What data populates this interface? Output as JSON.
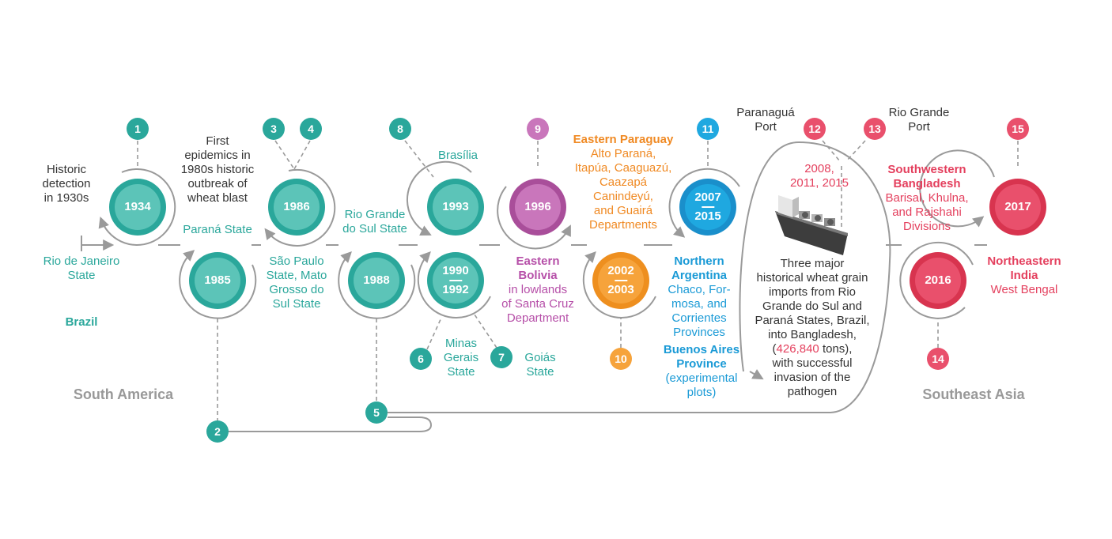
{
  "colors": {
    "teal": "#2aa79b",
    "teal_light": "#5cc4b8",
    "purple": "#c976bb",
    "orange": "#f6a33b",
    "blue": "#1fa8e0",
    "red": "#e9506c",
    "path": "#9a9a9a"
  },
  "regions": {
    "south_america": "South America",
    "southeast_asia": "Southeast Asia"
  },
  "years": {
    "y1934": "1934",
    "y1985": "1985",
    "y1986": "1986",
    "y1988": "1988",
    "y1993": "1993",
    "y1990_a": "1990",
    "y1990_b": "1992",
    "y1996": "1996",
    "y2002_a": "2002",
    "y2002_b": "2003",
    "y2007_a": "2007",
    "y2007_b": "2015",
    "y2016": "2016",
    "y2017": "2017"
  },
  "markers": [
    "1",
    "2",
    "3",
    "4",
    "5",
    "6",
    "7",
    "8",
    "9",
    "10",
    "11",
    "12",
    "13",
    "14",
    "15"
  ],
  "labels": {
    "historic": [
      "Historic",
      "detection",
      "in 1930s"
    ],
    "rio_janeiro": [
      "Rio de Janeiro",
      "State"
    ],
    "brazil": "Brazil",
    "first_epidemics": [
      "First",
      "epidemics in",
      "1980s historic",
      "outbreak of",
      "wheat blast"
    ],
    "parana": "Paraná State",
    "sao_paulo": [
      "São Paulo",
      "State, Mato",
      "Grosso do",
      "Sul State"
    ],
    "rio_grande_sul": [
      "Rio Grande",
      "do Sul State"
    ],
    "brasilia": "Brasília",
    "minas": [
      "Minas",
      "Gerais",
      "State"
    ],
    "goias": [
      "Goiás",
      "State"
    ],
    "eastern_bolivia_title": [
      "Eastern",
      "Bolivia"
    ],
    "eastern_bolivia_body": [
      "in lowlands",
      "of Santa Cruz",
      "Department"
    ],
    "eastern_paraguay_title": "Eastern Paraguay",
    "eastern_paraguay_body": [
      "Alto Paraná,",
      "Itapúa, Caaguazú,",
      "Caazapá",
      "Canindeyú,",
      "and Guairá",
      "Departments"
    ],
    "northern_argentina_title": [
      "Northern",
      "Argentina"
    ],
    "northern_argentina_body": [
      "Chaco, For-",
      "mosa, and",
      "Corrientes",
      "Provinces"
    ],
    "buenos_aires_title": [
      "Buenos Aires",
      "Province"
    ],
    "buenos_aires_body": [
      "(experimental",
      "plots)"
    ],
    "paranagua": [
      "Paranaguá",
      "Port"
    ],
    "rio_grande_port": [
      "Rio Grande",
      "Port"
    ],
    "import_years": [
      "2008,",
      "2011, 2015"
    ],
    "imports_text": [
      "Three major",
      "historical wheat grain",
      "imports from Rio",
      "Grande do Sul and",
      "Paraná States, Brazil,",
      "into Bangladesh,"
    ],
    "imports_tons_open": "(",
    "imports_tons_value": "426,840",
    "imports_tons_close": " tons),",
    "imports_tail": [
      "with successful",
      "invasion of the",
      "pathogen"
    ],
    "sw_bangladesh_title": [
      "Southwestern",
      "Bangladesh"
    ],
    "sw_bangladesh_body": [
      "Barisal, Khulna,",
      "and Rajshahi",
      "Divisions"
    ],
    "ne_india_title": [
      "Northeastern",
      "India"
    ],
    "ne_india_body": "West Bengal"
  }
}
